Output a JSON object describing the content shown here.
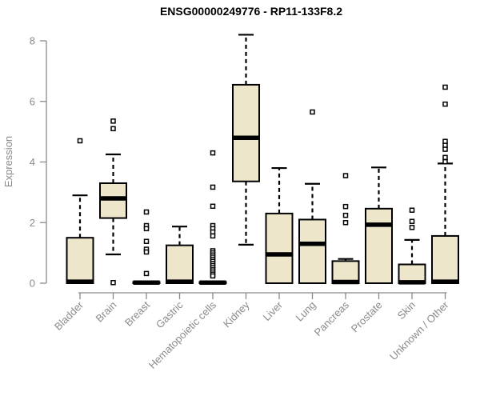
{
  "chart_data": {
    "type": "boxplot",
    "title": "ENSG00000249776 - RP11-133F8.2",
    "ylabel": "Expression",
    "xlabel": "",
    "ylim": [
      0,
      8
    ],
    "yticks": [
      0,
      2,
      4,
      6,
      8
    ],
    "grid": false,
    "legend": null,
    "colors": {
      "box_fill": "#EDE6CB",
      "box_stroke": "#000000",
      "median": "#000000",
      "whisker": "#000000",
      "outlier_fill": "#FFFFFF",
      "axis": "#8A8A8A",
      "tick_label": "#8A8A8A",
      "title": "#000000",
      "background": "#FFFFFF"
    },
    "categories": [
      "Bladder",
      "Brain",
      "Breast",
      "Gastric",
      "Hematopoietic cells",
      "Kidney",
      "Liver",
      "Lung",
      "Pancreas",
      "Prostate",
      "Skin",
      "Unknown / Other"
    ],
    "boxes": [
      {
        "category": "Bladder",
        "whisker_low": 0,
        "q1": 0,
        "median": 0.05,
        "q3": 1.5,
        "whisker_high": 2.9,
        "outliers": [
          4.7
        ]
      },
      {
        "category": "Brain",
        "whisker_low": 0.95,
        "q1": 2.15,
        "median": 2.8,
        "q3": 3.3,
        "whisker_high": 4.25,
        "outliers": [
          5.35,
          5.1,
          0.02
        ]
      },
      {
        "category": "Breast",
        "whisker_low": 0,
        "q1": 0,
        "median": 0.02,
        "q3": 0.04,
        "whisker_high": 0.04,
        "outliers": [
          2.35,
          1.9,
          1.8,
          1.38,
          1.12,
          1.03,
          0.32
        ]
      },
      {
        "category": "Gastric",
        "whisker_low": 0,
        "q1": 0,
        "median": 0.05,
        "q3": 1.25,
        "whisker_high": 1.87,
        "outliers": []
      },
      {
        "category": "Hematopoietic cells",
        "whisker_low": 0,
        "q1": 0,
        "median": 0.02,
        "q3": 0.04,
        "whisker_high": 0.04,
        "outliers": [
          4.3,
          3.17,
          2.54,
          1.9,
          1.8,
          1.69,
          1.56,
          1.07,
          1.0,
          0.93,
          0.86,
          0.79,
          0.72,
          0.65,
          0.58,
          0.51,
          0.44,
          0.37,
          0.3,
          0.24
        ]
      },
      {
        "category": "Kidney",
        "whisker_low": 1.27,
        "q1": 3.36,
        "median": 4.8,
        "q3": 6.55,
        "whisker_high": 8.2,
        "outliers": []
      },
      {
        "category": "Liver",
        "whisker_low": 0,
        "q1": 0,
        "median": 0.95,
        "q3": 2.3,
        "whisker_high": 3.8,
        "outliers": []
      },
      {
        "category": "Lung",
        "whisker_low": 0,
        "q1": 0,
        "median": 1.3,
        "q3": 2.1,
        "whisker_high": 3.28,
        "outliers": [
          5.65
        ]
      },
      {
        "category": "Pancreas",
        "whisker_low": 0,
        "q1": 0,
        "median": 0.04,
        "q3": 0.73,
        "whisker_high": 0.8,
        "outliers": [
          3.55,
          2.53,
          2.24,
          2.0
        ]
      },
      {
        "category": "Prostate",
        "whisker_low": 0,
        "q1": 0,
        "median": 1.93,
        "q3": 2.46,
        "whisker_high": 3.82,
        "outliers": []
      },
      {
        "category": "Skin",
        "whisker_low": 0,
        "q1": 0,
        "median": 0.03,
        "q3": 0.62,
        "whisker_high": 1.43,
        "outliers": [
          2.41,
          2.04,
          1.84
        ]
      },
      {
        "category": "Unknown / Other",
        "whisker_low": 0,
        "q1": 0,
        "median": 0.05,
        "q3": 1.56,
        "whisker_high": 3.95,
        "outliers": [
          6.47,
          5.91,
          4.68,
          4.55,
          4.42,
          4.15,
          4.01
        ]
      }
    ]
  }
}
